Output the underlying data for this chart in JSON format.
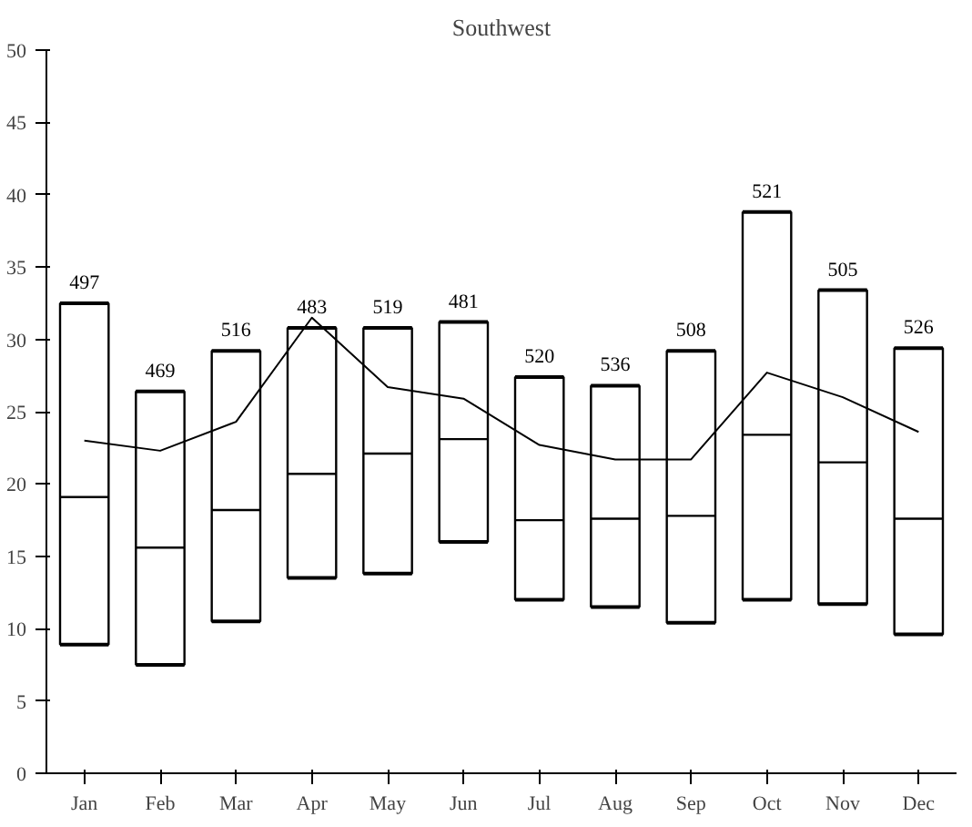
{
  "chart_data": {
    "type": "box",
    "title": "Southwest",
    "categories": [
      "Jan",
      "Feb",
      "Mar",
      "Apr",
      "May",
      "Jun",
      "Jul",
      "Aug",
      "Sep",
      "Oct",
      "Nov",
      "Dec"
    ],
    "boxes": [
      {
        "low": 8.9,
        "q1": 8.9,
        "median": 19.1,
        "q3": 32.5,
        "high": 32.5
      },
      {
        "low": 7.5,
        "q1": 7.5,
        "median": 15.6,
        "q3": 26.4,
        "high": 26.4
      },
      {
        "low": 10.5,
        "q1": 10.5,
        "median": 18.2,
        "q3": 29.2,
        "high": 29.2
      },
      {
        "low": 13.5,
        "q1": 13.5,
        "median": 20.7,
        "q3": 30.8,
        "high": 30.8
      },
      {
        "low": 13.8,
        "q1": 13.8,
        "median": 22.1,
        "q3": 30.8,
        "high": 30.8
      },
      {
        "low": 16.0,
        "q1": 16.0,
        "median": 23.1,
        "q3": 31.2,
        "high": 31.2
      },
      {
        "low": 12.0,
        "q1": 12.0,
        "median": 17.5,
        "q3": 27.4,
        "high": 27.4
      },
      {
        "low": 11.5,
        "q1": 11.5,
        "median": 17.6,
        "q3": 26.8,
        "high": 26.8
      },
      {
        "low": 10.4,
        "q1": 10.4,
        "median": 17.8,
        "q3": 29.2,
        "high": 29.2
      },
      {
        "low": 12.0,
        "q1": 12.0,
        "median": 23.4,
        "q3": 38.8,
        "high": 38.8
      },
      {
        "low": 11.7,
        "q1": 11.7,
        "median": 21.5,
        "q3": 33.4,
        "high": 33.4
      },
      {
        "low": 9.6,
        "q1": 9.6,
        "median": 17.6,
        "q3": 29.4,
        "high": 29.4
      }
    ],
    "series": [
      {
        "type": "line",
        "color": "#000000",
        "values": [
          23.0,
          22.3,
          24.3,
          31.5,
          26.7,
          25.9,
          22.7,
          21.7,
          21.7,
          27.7,
          26.0,
          23.6
        ]
      }
    ],
    "annotations": [
      {
        "text": "497",
        "x": "Jan",
        "y": 32.5
      },
      {
        "text": "469",
        "x": "Feb",
        "y": 26.4
      },
      {
        "text": "516",
        "x": "Mar",
        "y": 29.2
      },
      {
        "text": "483",
        "x": "Apr",
        "y": 30.8
      },
      {
        "text": "519",
        "x": "May",
        "y": 30.8
      },
      {
        "text": "481",
        "x": "Jun",
        "y": 31.2
      },
      {
        "text": "520",
        "x": "Jul",
        "y": 27.4
      },
      {
        "text": "536",
        "x": "Aug",
        "y": 26.8
      },
      {
        "text": "508",
        "x": "Sep",
        "y": 29.2
      },
      {
        "text": "521",
        "x": "Oct",
        "y": 38.8
      },
      {
        "text": "505",
        "x": "Nov",
        "y": 33.4
      },
      {
        "text": "526",
        "x": "Dec",
        "y": 29.4
      }
    ],
    "ylim": [
      0,
      50
    ],
    "yticks": [
      0,
      5,
      10,
      15,
      20,
      25,
      30,
      35,
      40,
      45,
      50
    ]
  }
}
